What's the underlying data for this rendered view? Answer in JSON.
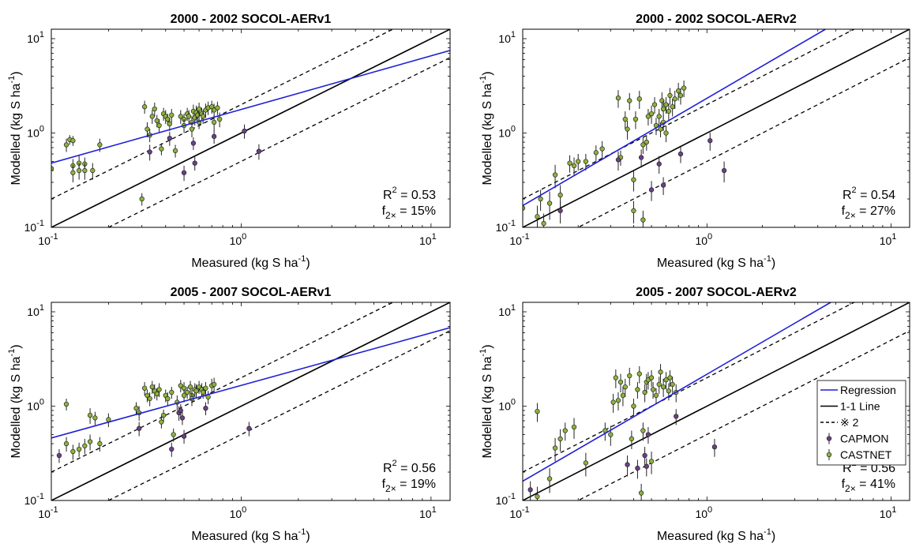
{
  "legend": {
    "regression": "Regression",
    "one_to_one": "1-1 Line",
    "factor_two": "※ 2",
    "capmon": "CAPMON",
    "castnet": "CASTNET"
  },
  "colors": {
    "regression": "#1f1fd6",
    "one_to_one": "#000000",
    "capmon": "#6b3f8c",
    "castnet": "#8db33a"
  },
  "chart_data": [
    {
      "type": "scatter",
      "title": "2000 - 2002 SOCOL-AERv1",
      "xlabel": "Measured (kg S ha",
      "ylabel": "Modelled (kg S ha",
      "label_sup": "-1",
      "label_close": ")",
      "xscale": "log",
      "yscale": "log",
      "xlim": [
        0.1,
        12.6
      ],
      "ylim": [
        0.1,
        12.6
      ],
      "xticks": [
        "10-1",
        "100",
        "101"
      ],
      "yticks": [
        "10-1",
        "100",
        "101"
      ],
      "stats": {
        "r2_label": "R",
        "r2_sup": "2",
        "r2_value": " = 0.53",
        "f_label": "f",
        "f_sub": "2×",
        "f_value": " = 15%"
      },
      "regression": {
        "x": [
          0.1,
          12.6
        ],
        "y": [
          0.48,
          7.5
        ]
      },
      "castnet": [
        [
          0.1,
          0.42,
          0.12
        ],
        [
          0.12,
          0.75,
          0.12
        ],
        [
          0.125,
          0.85,
          0.1
        ],
        [
          0.13,
          0.83,
          0.1
        ],
        [
          0.13,
          0.45,
          0.08
        ],
        [
          0.13,
          0.38,
          0.08
        ],
        [
          0.14,
          0.48,
          0.1
        ],
        [
          0.14,
          0.4,
          0.08
        ],
        [
          0.15,
          0.47,
          0.08
        ],
        [
          0.15,
          0.4,
          0.08
        ],
        [
          0.165,
          0.4,
          0.08
        ],
        [
          0.18,
          0.75,
          0.12
        ],
        [
          0.31,
          1.9,
          0.3
        ],
        [
          0.32,
          1.1,
          0.2
        ],
        [
          0.33,
          0.95,
          0.15
        ],
        [
          0.34,
          1.5,
          0.25
        ],
        [
          0.35,
          1.8,
          0.3
        ],
        [
          0.36,
          1.35,
          0.2
        ],
        [
          0.37,
          1.2,
          0.2
        ],
        [
          0.38,
          0.68,
          0.1
        ],
        [
          0.39,
          1.6,
          0.25
        ],
        [
          0.4,
          1.5,
          0.25
        ],
        [
          0.41,
          1.4,
          0.2
        ],
        [
          0.42,
          1.25,
          0.2
        ],
        [
          0.43,
          1.55,
          0.25
        ],
        [
          0.45,
          0.65,
          0.1
        ],
        [
          0.48,
          1.5,
          0.25
        ],
        [
          0.5,
          1.4,
          0.2
        ],
        [
          0.52,
          1.6,
          0.25
        ],
        [
          0.53,
          1.5,
          0.25
        ],
        [
          0.55,
          1.3,
          0.2
        ],
        [
          0.56,
          1.7,
          0.3
        ],
        [
          0.57,
          1.45,
          0.25
        ],
        [
          0.58,
          1.65,
          0.3
        ],
        [
          0.59,
          1.55,
          0.25
        ],
        [
          0.6,
          1.8,
          0.3
        ],
        [
          0.62,
          1.6,
          0.25
        ],
        [
          0.63,
          1.5,
          0.25
        ],
        [
          0.65,
          1.75,
          0.3
        ],
        [
          0.67,
          1.85,
          0.3
        ],
        [
          0.7,
          1.9,
          0.3
        ],
        [
          0.72,
          1.75,
          0.3
        ],
        [
          0.75,
          1.85,
          0.3
        ],
        [
          0.77,
          1.4,
          0.25
        ],
        [
          0.3,
          0.2,
          0.03
        ],
        [
          0.5,
          1.2,
          0.2
        ],
        [
          0.55,
          1.1,
          0.2
        ],
        [
          0.6,
          1.3,
          0.2
        ],
        [
          0.72,
          1.3,
          0.25
        ]
      ],
      "capmon": [
        [
          0.33,
          0.63,
          0.12
        ],
        [
          0.42,
          0.88,
          0.15
        ],
        [
          0.5,
          0.38,
          0.07
        ],
        [
          0.56,
          0.78,
          0.12
        ],
        [
          0.57,
          0.48,
          0.08
        ],
        [
          0.72,
          0.92,
          0.15
        ],
        [
          1.04,
          1.05,
          0.18
        ],
        [
          1.24,
          0.64,
          0.12
        ]
      ]
    },
    {
      "type": "scatter",
      "title": "2000 - 2002 SOCOL-AERv2",
      "xlabel": "Measured (kg S ha",
      "ylabel": "Modelled (kg S ha",
      "label_sup": "-1",
      "label_close": ")",
      "xscale": "log",
      "yscale": "log",
      "xlim": [
        0.1,
        12.6
      ],
      "ylim": [
        0.1,
        12.6
      ],
      "xticks": [
        "10-1",
        "100",
        "101"
      ],
      "yticks": [
        "10-1",
        "100",
        "101"
      ],
      "stats": {
        "r2_label": "R",
        "r2_sup": "2",
        "r2_value": " = 0.54",
        "f_label": "f",
        "f_sub": "2×",
        "f_value": " = 27%"
      },
      "regression": {
        "x": [
          0.1,
          4.4
        ],
        "y": [
          0.17,
          12.6
        ]
      },
      "castnet": [
        [
          0.1,
          0.16,
          0.05
        ],
        [
          0.12,
          0.13,
          0.04
        ],
        [
          0.125,
          0.2,
          0.05
        ],
        [
          0.13,
          0.11,
          0.03
        ],
        [
          0.14,
          0.18,
          0.06
        ],
        [
          0.15,
          0.36,
          0.1
        ],
        [
          0.16,
          0.22,
          0.06
        ],
        [
          0.18,
          0.48,
          0.1
        ],
        [
          0.19,
          0.45,
          0.1
        ],
        [
          0.2,
          0.5,
          0.1
        ],
        [
          0.22,
          0.5,
          0.1
        ],
        [
          0.25,
          0.62,
          0.12
        ],
        [
          0.27,
          0.68,
          0.14
        ],
        [
          0.33,
          2.35,
          0.5
        ],
        [
          0.34,
          0.55,
          0.1
        ],
        [
          0.36,
          1.4,
          0.3
        ],
        [
          0.37,
          1.1,
          0.25
        ],
        [
          0.38,
          2.2,
          0.45
        ],
        [
          0.4,
          0.32,
          0.08
        ],
        [
          0.41,
          1.4,
          0.3
        ],
        [
          0.43,
          2.3,
          0.5
        ],
        [
          0.45,
          0.75,
          0.15
        ],
        [
          0.47,
          0.8,
          0.15
        ],
        [
          0.48,
          1.5,
          0.3
        ],
        [
          0.5,
          1.6,
          0.35
        ],
        [
          0.52,
          2.0,
          0.4
        ],
        [
          0.53,
          1.2,
          0.25
        ],
        [
          0.55,
          1.5,
          0.3
        ],
        [
          0.56,
          1.1,
          0.2
        ],
        [
          0.57,
          2.2,
          0.5
        ],
        [
          0.58,
          1.8,
          0.4
        ],
        [
          0.6,
          2.0,
          0.4
        ],
        [
          0.62,
          1.7,
          0.35
        ],
        [
          0.63,
          2.5,
          0.5
        ],
        [
          0.65,
          1.9,
          0.4
        ],
        [
          0.67,
          2.3,
          0.5
        ],
        [
          0.7,
          2.8,
          0.6
        ],
        [
          0.72,
          2.5,
          0.5
        ],
        [
          0.75,
          3.0,
          0.6
        ],
        [
          0.4,
          0.15,
          0.04
        ],
        [
          0.45,
          0.12,
          0.03
        ],
        [
          0.58,
          1.3,
          0.25
        ],
        [
          0.6,
          1.0,
          0.2
        ]
      ],
      "capmon": [
        [
          0.16,
          0.15,
          0.04
        ],
        [
          0.33,
          0.52,
          0.12
        ],
        [
          0.44,
          0.55,
          0.12
        ],
        [
          0.5,
          0.25,
          0.06
        ],
        [
          0.55,
          0.47,
          0.1
        ],
        [
          0.58,
          0.28,
          0.06
        ],
        [
          0.72,
          0.6,
          0.12
        ],
        [
          1.04,
          0.83,
          0.18
        ],
        [
          1.24,
          0.4,
          0.1
        ]
      ]
    },
    {
      "type": "scatter",
      "title": "2005 - 2007 SOCOL-AERv1",
      "xlabel": "Measured (kg S ha",
      "ylabel": "Modelled (kg S ha",
      "label_sup": "-1",
      "label_close": ")",
      "xscale": "log",
      "yscale": "log",
      "xlim": [
        0.1,
        12.6
      ],
      "ylim": [
        0.1,
        12.6
      ],
      "xticks": [
        "10-1",
        "100",
        "101"
      ],
      "yticks": [
        "10-1",
        "100",
        "101"
      ],
      "stats": {
        "r2_label": "R",
        "r2_sup": "2",
        "r2_value": " = 0.56",
        "f_label": "f",
        "f_sub": "2×",
        "f_value": " = 19%"
      },
      "regression": {
        "x": [
          0.1,
          12.6
        ],
        "y": [
          0.46,
          6.8
        ]
      },
      "castnet": [
        [
          0.12,
          1.05,
          0.15
        ],
        [
          0.12,
          0.4,
          0.07
        ],
        [
          0.13,
          0.33,
          0.06
        ],
        [
          0.14,
          0.35,
          0.06
        ],
        [
          0.15,
          0.38,
          0.07
        ],
        [
          0.16,
          0.8,
          0.15
        ],
        [
          0.16,
          0.42,
          0.08
        ],
        [
          0.17,
          0.75,
          0.12
        ],
        [
          0.18,
          0.4,
          0.07
        ],
        [
          0.2,
          0.72,
          0.12
        ],
        [
          0.28,
          0.95,
          0.15
        ],
        [
          0.29,
          0.85,
          0.15
        ],
        [
          0.31,
          1.55,
          0.25
        ],
        [
          0.32,
          1.3,
          0.2
        ],
        [
          0.33,
          1.2,
          0.2
        ],
        [
          0.34,
          1.6,
          0.25
        ],
        [
          0.35,
          1.45,
          0.25
        ],
        [
          0.36,
          1.35,
          0.2
        ],
        [
          0.37,
          1.5,
          0.25
        ],
        [
          0.38,
          0.68,
          0.1
        ],
        [
          0.39,
          0.8,
          0.12
        ],
        [
          0.4,
          1.3,
          0.2
        ],
        [
          0.41,
          1.2,
          0.2
        ],
        [
          0.43,
          1.4,
          0.2
        ],
        [
          0.44,
          0.5,
          0.08
        ],
        [
          0.46,
          1.1,
          0.2
        ],
        [
          0.48,
          1.65,
          0.25
        ],
        [
          0.5,
          1.55,
          0.25
        ],
        [
          0.52,
          1.4,
          0.2
        ],
        [
          0.54,
          1.6,
          0.25
        ],
        [
          0.55,
          1.3,
          0.2
        ],
        [
          0.57,
          1.5,
          0.25
        ],
        [
          0.58,
          1.45,
          0.25
        ],
        [
          0.6,
          1.6,
          0.25
        ],
        [
          0.62,
          1.5,
          0.25
        ],
        [
          0.63,
          1.4,
          0.2
        ],
        [
          0.65,
          1.55,
          0.25
        ],
        [
          0.67,
          1.25,
          0.2
        ],
        [
          0.7,
          1.65,
          0.3
        ],
        [
          0.72,
          1.7,
          0.3
        ],
        [
          0.55,
          1.2,
          0.2
        ],
        [
          0.5,
          1.3,
          0.2
        ]
      ],
      "capmon": [
        [
          0.11,
          0.3,
          0.05
        ],
        [
          0.29,
          0.58,
          0.1
        ],
        [
          0.43,
          0.35,
          0.06
        ],
        [
          0.47,
          0.85,
          0.15
        ],
        [
          0.48,
          0.9,
          0.15
        ],
        [
          0.5,
          0.48,
          0.08
        ],
        [
          0.49,
          0.75,
          0.12
        ],
        [
          0.65,
          0.95,
          0.15
        ],
        [
          1.1,
          0.58,
          0.1
        ]
      ]
    },
    {
      "type": "scatter",
      "title": "2005 - 2007 SOCOL-AERv2",
      "xlabel": "Measured (kg S ha",
      "ylabel": "Modelled (kg S ha",
      "label_sup": "-1",
      "label_close": ")",
      "xscale": "log",
      "yscale": "log",
      "xlim": [
        0.1,
        12.6
      ],
      "ylim": [
        0.1,
        12.6
      ],
      "xticks": [
        "10-1",
        "100",
        "101"
      ],
      "yticks": [
        "10-1",
        "100",
        "101"
      ],
      "stats": {
        "r2_label": "R",
        "r2_sup": "2",
        "r2_value": " = 0.56",
        "f_label": "f",
        "f_sub": "2×",
        "f_value": " = 41%"
      },
      "regression": {
        "x": [
          0.1,
          4.7
        ],
        "y": [
          0.16,
          12.6
        ]
      },
      "legend_location": "east",
      "castnet": [
        [
          0.12,
          0.88,
          0.2
        ],
        [
          0.12,
          0.11,
          0.03
        ],
        [
          0.14,
          0.17,
          0.05
        ],
        [
          0.15,
          0.36,
          0.1
        ],
        [
          0.16,
          0.45,
          0.12
        ],
        [
          0.17,
          0.55,
          0.12
        ],
        [
          0.19,
          0.6,
          0.15
        ],
        [
          0.22,
          0.25,
          0.07
        ],
        [
          0.28,
          0.55,
          0.12
        ],
        [
          0.3,
          0.5,
          0.12
        ],
        [
          0.31,
          1.1,
          0.25
        ],
        [
          0.32,
          2.0,
          0.45
        ],
        [
          0.33,
          1.15,
          0.25
        ],
        [
          0.34,
          1.8,
          0.4
        ],
        [
          0.35,
          1.3,
          0.3
        ],
        [
          0.36,
          1.6,
          0.35
        ],
        [
          0.38,
          2.1,
          0.45
        ],
        [
          0.39,
          0.45,
          0.1
        ],
        [
          0.4,
          1.0,
          0.2
        ],
        [
          0.42,
          1.5,
          0.3
        ],
        [
          0.43,
          2.2,
          0.45
        ],
        [
          0.45,
          0.55,
          0.12
        ],
        [
          0.46,
          1.4,
          0.3
        ],
        [
          0.47,
          1.8,
          0.4
        ],
        [
          0.48,
          1.9,
          0.4
        ],
        [
          0.5,
          2.0,
          0.4
        ],
        [
          0.51,
          1.5,
          0.3
        ],
        [
          0.53,
          1.3,
          0.25
        ],
        [
          0.55,
          1.7,
          0.35
        ],
        [
          0.56,
          2.3,
          0.5
        ],
        [
          0.58,
          1.6,
          0.35
        ],
        [
          0.6,
          1.9,
          0.4
        ],
        [
          0.62,
          1.45,
          0.3
        ],
        [
          0.63,
          2.0,
          0.4
        ],
        [
          0.65,
          1.7,
          0.35
        ],
        [
          0.68,
          1.4,
          0.3
        ],
        [
          0.44,
          0.12,
          0.03
        ],
        [
          0.5,
          0.26,
          0.07
        ]
      ],
      "capmon": [
        [
          0.11,
          0.13,
          0.03
        ],
        [
          0.37,
          0.24,
          0.06
        ],
        [
          0.42,
          0.22,
          0.05
        ],
        [
          0.46,
          0.3,
          0.07
        ],
        [
          0.47,
          0.23,
          0.05
        ],
        [
          0.48,
          0.5,
          0.1
        ],
        [
          0.68,
          0.78,
          0.15
        ],
        [
          1.1,
          0.37,
          0.08
        ]
      ]
    }
  ]
}
